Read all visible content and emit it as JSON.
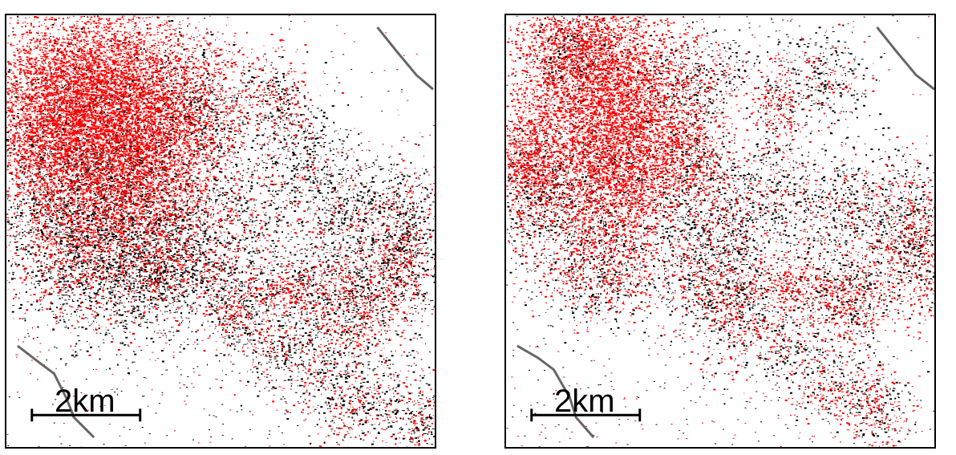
{
  "panels": [
    {
      "id": "left",
      "scale_label": "2km",
      "clusters": [
        [
          95,
          80,
          60,
          50,
          1,
          0.95
        ],
        [
          150,
          110,
          70,
          60,
          1,
          0.9
        ],
        [
          60,
          150,
          50,
          45,
          1,
          0.9
        ],
        [
          170,
          190,
          40,
          55,
          1,
          0.8
        ],
        [
          110,
          240,
          50,
          40,
          0.55,
          0.6
        ],
        [
          90,
          310,
          60,
          40,
          0.55,
          0.5
        ],
        [
          70,
          210,
          60,
          60,
          0.5,
          0.45
        ],
        [
          280,
          250,
          45,
          40,
          0.5,
          0.45
        ],
        [
          340,
          110,
          25,
          30,
          0.55,
          0.45
        ],
        [
          240,
          120,
          30,
          40,
          0.6,
          0.4
        ],
        [
          300,
          380,
          30,
          25,
          0.6,
          0.55
        ],
        [
          390,
          360,
          25,
          40,
          0.55,
          0.5
        ],
        [
          440,
          360,
          25,
          35,
          0.7,
          0.55
        ],
        [
          350,
          340,
          20,
          15,
          0.85,
          0.6
        ],
        [
          495,
          330,
          25,
          40,
          0.6,
          0.5
        ],
        [
          430,
          250,
          40,
          40,
          0.5,
          0.3
        ],
        [
          500,
          250,
          25,
          40,
          0.5,
          0.35
        ],
        [
          440,
          480,
          40,
          30,
          0.5,
          0.4
        ],
        [
          520,
          510,
          20,
          25,
          0.55,
          0.4
        ],
        [
          360,
          430,
          40,
          25,
          0.4,
          0.25
        ],
        [
          260,
          330,
          40,
          30,
          0.4,
          0.35
        ],
        [
          200,
          320,
          30,
          30,
          0.45,
          0.35
        ],
        [
          160,
          300,
          50,
          60,
          0.5,
          0.2
        ],
        [
          380,
          170,
          30,
          30,
          0.4,
          0.15
        ]
      ],
      "faults": [
        [
          [
            466,
            15
          ],
          [
            490,
            45
          ],
          [
            515,
            75
          ],
          [
            536,
            93
          ]
        ],
        [
          [
            14,
            415
          ],
          [
            40,
            435
          ],
          [
            60,
            450
          ],
          [
            75,
            480
          ],
          [
            85,
            505
          ],
          [
            110,
            530
          ]
        ]
      ]
    },
    {
      "id": "right",
      "scale_label": "2km",
      "clusters": [
        [
          110,
          100,
          55,
          80,
          1,
          0.95
        ],
        [
          150,
          160,
          40,
          70,
          1,
          0.9
        ],
        [
          25,
          180,
          25,
          30,
          1,
          0.95
        ],
        [
          80,
          40,
          30,
          30,
          0.9,
          0.6
        ],
        [
          230,
          170,
          25,
          35,
          0.85,
          0.6
        ],
        [
          340,
          110,
          15,
          30,
          0.6,
          0.7
        ],
        [
          100,
          250,
          50,
          50,
          0.5,
          0.45
        ],
        [
          120,
          330,
          40,
          30,
          0.5,
          0.5
        ],
        [
          290,
          370,
          35,
          40,
          0.55,
          0.55
        ],
        [
          350,
          340,
          20,
          20,
          0.55,
          0.8
        ],
        [
          400,
          350,
          25,
          25,
          0.55,
          0.6
        ],
        [
          440,
          360,
          25,
          30,
          0.6,
          0.6
        ],
        [
          510,
          300,
          30,
          40,
          0.6,
          0.6
        ],
        [
          500,
          250,
          25,
          40,
          0.5,
          0.4
        ],
        [
          420,
          240,
          30,
          40,
          0.45,
          0.35
        ],
        [
          330,
          230,
          30,
          40,
          0.4,
          0.25
        ],
        [
          260,
          250,
          35,
          40,
          0.5,
          0.3
        ],
        [
          230,
          80,
          40,
          30,
          0.5,
          0.4
        ],
        [
          420,
          470,
          35,
          25,
          0.5,
          0.5
        ],
        [
          470,
          500,
          20,
          25,
          0.5,
          0.5
        ],
        [
          250,
          330,
          40,
          30,
          0.45,
          0.4
        ],
        [
          360,
          420,
          30,
          20,
          0.35,
          0.3
        ],
        [
          400,
          80,
          30,
          30,
          0.45,
          0.35
        ],
        [
          30,
          220,
          30,
          40,
          0.45,
          0.4
        ]
      ],
      "faults": [
        [
          [
            466,
            15
          ],
          [
            490,
            45
          ],
          [
            515,
            75
          ],
          [
            538,
            93
          ]
        ],
        [
          [
            14,
            415
          ],
          [
            40,
            430
          ],
          [
            60,
            445
          ],
          [
            80,
            480
          ],
          [
            88,
            505
          ],
          [
            110,
            530
          ]
        ]
      ]
    }
  ],
  "colors": {
    "red_points": "#ff0000",
    "black_points": "#000000",
    "fault": "#666666",
    "frame": "#000000"
  }
}
